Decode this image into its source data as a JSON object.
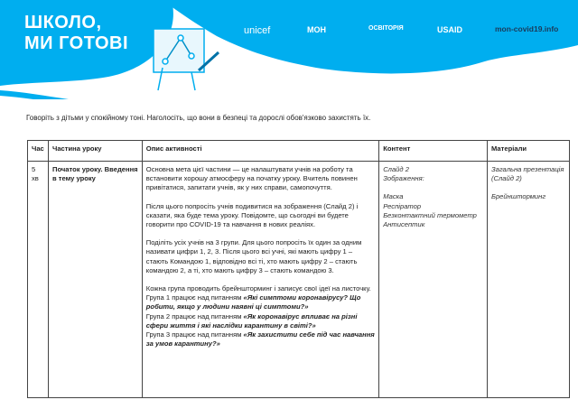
{
  "header": {
    "brand_title_line1": "ШКОЛО,",
    "brand_title_line2": "МИ ГОТОВІ",
    "logos": [
      "unicef",
      "МОН",
      "ОСВІТОРІЯ",
      "USAID"
    ],
    "site": "mon-covid19.info",
    "accent_color": "#00aeef"
  },
  "intro": "Говоріть з дітьми у спокійному тоні. Наголосіть, що вони в безпеці та дорослі обов'язково захистять їх.",
  "table": {
    "columns": [
      "Час",
      "Частина уроку",
      "Опис активності",
      "Контент",
      "Матеріали"
    ],
    "row": {
      "time": "5 хв",
      "part": "Початок уроку. Введення в тему уроку",
      "desc_p1": "Основна мета цієї частини — це налаштувати учнів на роботу та встановити хорошу атмосферу на початку уроку. Вчитель повинен привітатися, запитати учнів, як у них справи, самопочуття.",
      "desc_p2": "Після цього попросіть учнів подивитися на зображення (Слайд 2) і сказати, яка буде тема уроку. Повідомте, що сьогодні ви будете говорити про COVID-19 та навчання в нових реаліях.",
      "desc_p3": "Поділіть усіх учнів на 3 групи. Для цього попросіть їх один за одним називати цифри 1, 2, 3. Після цього всі учні, які мають цифру 1 – стають Командою 1, відповідно всі ті, хто мають цифру 2 – стають командою 2, а ті, хто мають цифру 3 – стають командою 3.",
      "desc_p4": "Кожна група проводить брейншторминг і записує свої ідеї на листочку.",
      "group1_prefix": "Група 1 працює над питанням ",
      "group1_q": "«Які симптоми коронавірусу? Що робити, якщо у людини наявні ці симптоми?»",
      "group2_prefix": "Група 2 працює над питанням ",
      "group2_q": "«Як коронавірус впливає на різні сфери життя і які наслідки карантину в світі?»",
      "group3_prefix": "Група 3 працює над питанням ",
      "group3_q": "«Як захистити себе під час навчання за умов карантину?»",
      "content": [
        "Слайд 2",
        "Зображення:",
        "Маска",
        "Респіратор",
        "Безконтактний термометр",
        "Антисептик"
      ],
      "materials": [
        "Загальна презентація (Слайд 2)",
        "Брейншторминг"
      ]
    }
  }
}
